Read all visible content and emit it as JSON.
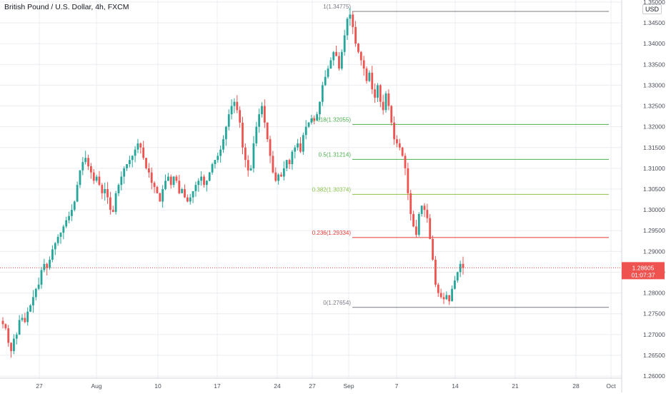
{
  "header": {
    "title": "British Pound / U.S. Dollar, 4h, FXCM",
    "currency_button": "USD"
  },
  "price_badge": {
    "price": "1.28605",
    "countdown": "01:07:37",
    "color": "#ef5350"
  },
  "colors": {
    "up": "#26a69a",
    "down": "#ef5350",
    "grid": "#e9ecf1",
    "axis_text": "#4a4f5a"
  },
  "chart_data": {
    "type": "candlestick",
    "title": "British Pound / U.S. Dollar, 4h, FXCM",
    "x_tick_labels": [
      "27",
      "Aug",
      "10",
      "17",
      "24",
      "27",
      "Sep",
      "7",
      "14",
      "21",
      "28",
      "Oct"
    ],
    "y_tick_labels": [
      "1.26000",
      "1.26500",
      "1.27000",
      "1.27500",
      "1.28000",
      "1.28500",
      "1.29000",
      "1.29500",
      "1.30000",
      "1.30500",
      "1.31000",
      "1.31500",
      "1.32000",
      "1.32500",
      "1.33000",
      "1.33500",
      "1.34000",
      "1.34500",
      "1.35000"
    ],
    "ylim": [
      1.2595,
      1.3505
    ],
    "grid": true,
    "last_price": 1.28605,
    "fibonacci": [
      {
        "label": "1(1.34775)",
        "price": 1.34775,
        "color": "#787b86"
      },
      {
        "label": "0.618(1.32055)",
        "price": 1.32055,
        "color": "#4caf50"
      },
      {
        "label": "0.5(1.31214)",
        "price": 1.31214,
        "color": "#4caf50"
      },
      {
        "label": "0.382(1.30374)",
        "price": 1.30374,
        "color": "#8bc34a"
      },
      {
        "label": "0.236(1.29334)",
        "price": 1.29334,
        "color": "#e53935"
      },
      {
        "label": "0(1.27654)",
        "price": 1.27654,
        "color": "#787b86"
      }
    ],
    "close_path": [
      1.2725,
      1.2715,
      1.268,
      1.266,
      1.269,
      1.27,
      1.2735,
      1.274,
      1.273,
      1.2755,
      1.277,
      1.279,
      1.281,
      1.282,
      1.2855,
      1.287,
      1.286,
      1.288,
      1.2905,
      1.292,
      1.2935,
      1.2945,
      1.296,
      1.2975,
      1.2985,
      1.3,
      1.302,
      1.306,
      1.3095,
      1.3115,
      1.3125,
      1.3105,
      1.309,
      1.307,
      1.308,
      1.306,
      1.304,
      1.305,
      1.303,
      1.3,
      1.2995,
      1.304,
      1.306,
      1.308,
      1.31,
      1.311,
      1.312,
      1.313,
      1.3145,
      1.316,
      1.315,
      1.3125,
      1.31,
      1.309,
      1.3065,
      1.3055,
      1.304,
      1.302,
      1.305,
      1.307,
      1.308,
      1.306,
      1.308,
      1.307,
      1.304,
      1.305,
      1.303,
      1.302,
      1.303,
      1.3045,
      1.306,
      1.307,
      1.308,
      1.306,
      1.307,
      1.309,
      1.311,
      1.312,
      1.313,
      1.3145,
      1.317,
      1.32,
      1.323,
      1.325,
      1.326,
      1.324,
      1.321,
      1.315,
      1.312,
      1.3095,
      1.31,
      1.316,
      1.32,
      1.323,
      1.325,
      1.321,
      1.317,
      1.313,
      1.309,
      1.307,
      1.3085,
      1.308,
      1.31,
      1.312,
      1.311,
      1.314,
      1.315,
      1.316,
      1.314,
      1.318,
      1.32,
      1.321,
      1.322,
      1.3215,
      1.323,
      1.326,
      1.33,
      1.332,
      1.334,
      1.336,
      1.338,
      1.337,
      1.334,
      1.338,
      1.342,
      1.346,
      1.347,
      1.344,
      1.34,
      1.338,
      1.336,
      1.334,
      1.331,
      1.333,
      1.329,
      1.327,
      1.33,
      1.326,
      1.324,
      1.328,
      1.325,
      1.321,
      1.317,
      1.316,
      1.315,
      1.313,
      1.31,
      1.304,
      1.299,
      1.296,
      1.294,
      1.299,
      1.301,
      1.3,
      1.298,
      1.293,
      1.288,
      1.282,
      1.28,
      1.279,
      1.2785,
      1.2795,
      1.278,
      1.281,
      1.283,
      1.285,
      1.287,
      1.286
    ]
  }
}
